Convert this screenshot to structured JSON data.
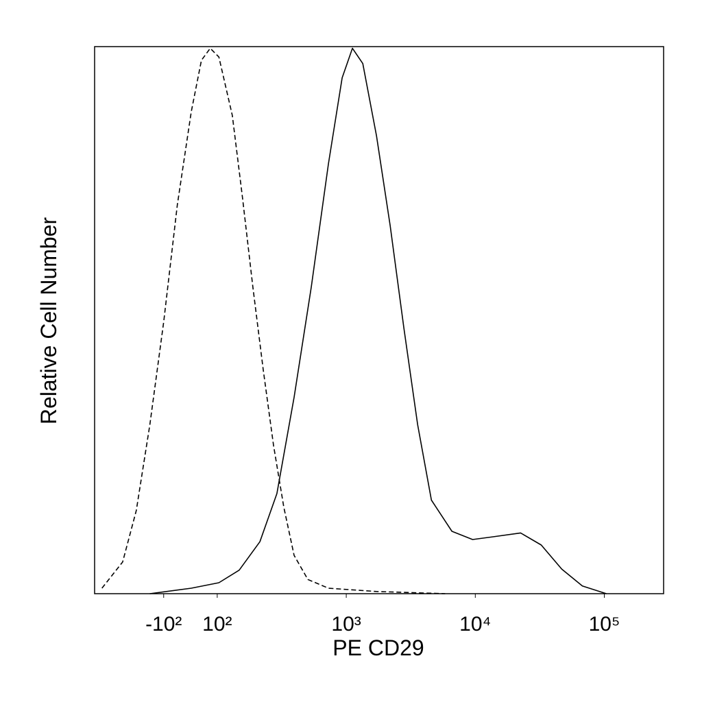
{
  "chart_data": {
    "type": "line",
    "xlabel": "PE CD29",
    "ylabel": "Relative Cell Number",
    "xscale": "biexponential",
    "xlim": [
      -343,
      288000
    ],
    "ylim": [
      0,
      100
    ],
    "xticks": [
      {
        "value": -100,
        "label": "-10²"
      },
      {
        "value": 100,
        "label": "10²"
      },
      {
        "value": 1000,
        "label": "10³"
      },
      {
        "value": 10000,
        "label": "10⁴"
      },
      {
        "value": 100000,
        "label": "10⁵"
      }
    ],
    "series": [
      {
        "color": "#000000",
        "dash": true,
        "x": [
          -301,
          -208,
          -163,
          -128,
          -100,
          -49,
          3,
          41,
          74,
          103,
          131,
          157,
          189,
          227,
          273,
          328,
          394,
          504,
          728,
          1715,
          5834
        ],
        "values": [
          1.0,
          5.8,
          15.2,
          30.9,
          49.7,
          71.1,
          88.1,
          97.5,
          99.7,
          98.1,
          87.4,
          72.4,
          56.0,
          41.0,
          27.1,
          15.8,
          7.0,
          2.6,
          1.0,
          0.4,
          0
        ]
      },
      {
        "color": "#000000",
        "dash": false,
        "x": [
          -128,
          3,
          103,
          148,
          214,
          290,
          394,
          535,
          728,
          929,
          1117,
          1343,
          1715,
          2189,
          2797,
          3573,
          4571,
          6592,
          9528,
          13740,
          22440,
          32430,
          46770,
          67610,
          103700
        ],
        "values": [
          0,
          1.0,
          2.0,
          4.3,
          9.5,
          18.3,
          35.9,
          56.0,
          78.6,
          94.3,
          99.7,
          96.9,
          83.7,
          67.3,
          48.5,
          30.9,
          17.1,
          11.4,
          9.9,
          10.4,
          11.1,
          8.9,
          4.5,
          1.4,
          0
        ]
      }
    ]
  }
}
